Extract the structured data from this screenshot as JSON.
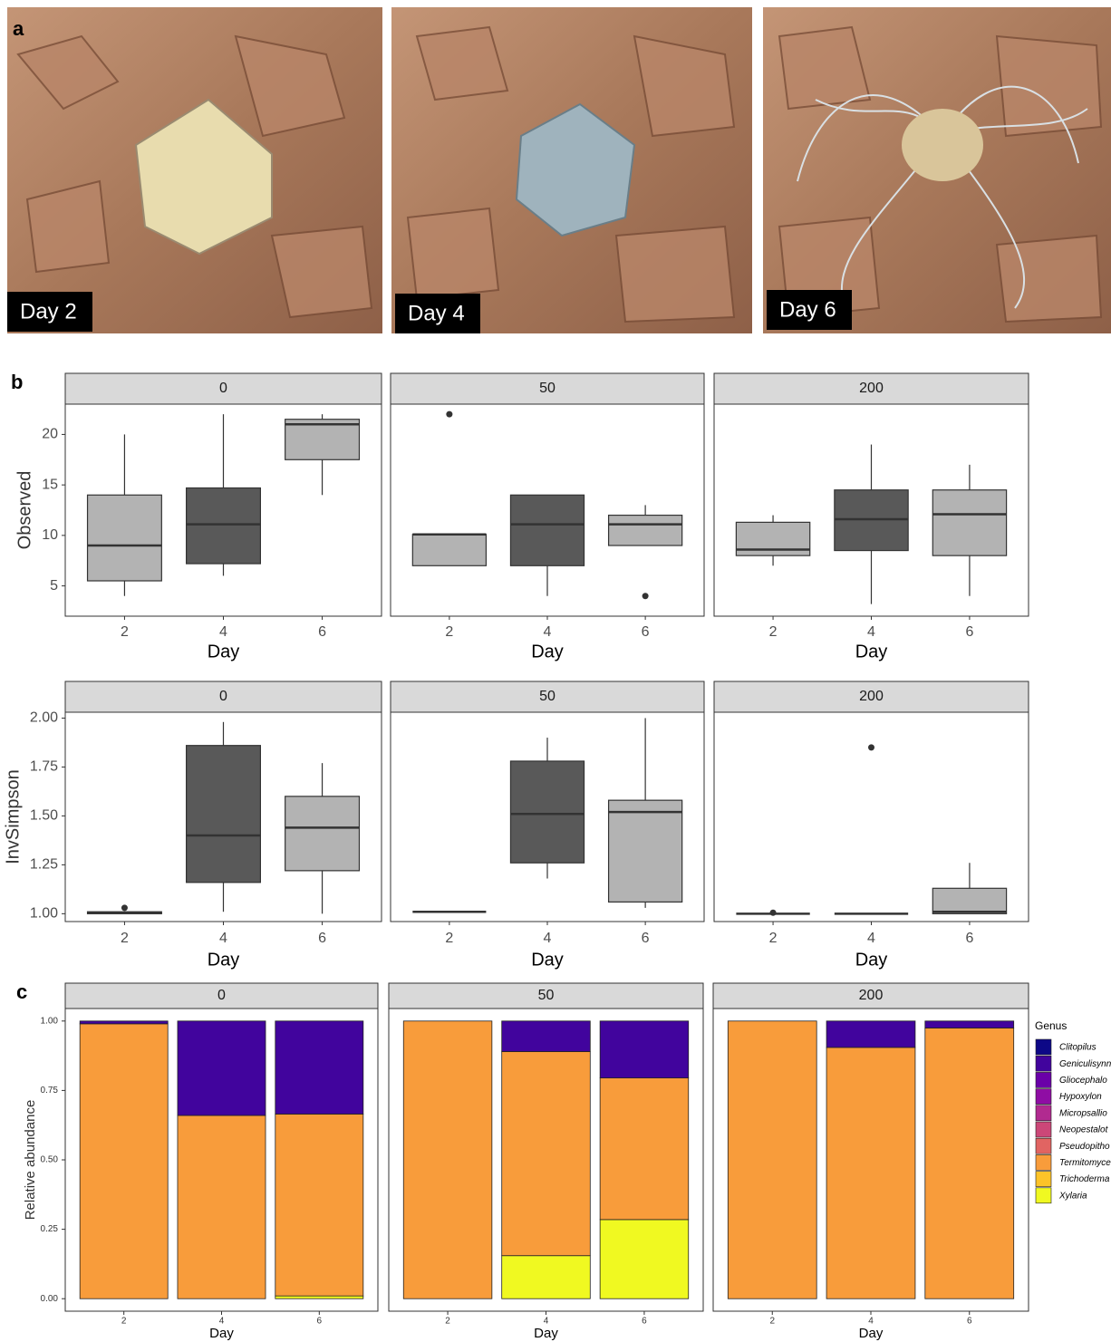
{
  "panel_labels": [
    "a",
    "b",
    "c"
  ],
  "photos": [
    {
      "label": "Day 2"
    },
    {
      "label": "Day 4"
    },
    {
      "label": "Day 6"
    }
  ],
  "chart_data": [
    {
      "type": "box",
      "ylabel": "Observed",
      "xlabel": "Day",
      "categories": [
        "2",
        "4",
        "6"
      ],
      "colors": [
        "#b3b3b3",
        "#595959",
        "#b3b3b3"
      ],
      "ylim": [
        2,
        23
      ],
      "yticks": [
        5,
        10,
        15,
        20
      ],
      "facets": [
        {
          "title": "0",
          "boxes": [
            {
              "min": 4,
              "q1": 5.5,
              "median": 9,
              "q3": 14,
              "max": 20,
              "outliers": []
            },
            {
              "min": 6,
              "q1": 7.2,
              "median": 11.1,
              "q3": 14.7,
              "max": 22,
              "outliers": []
            },
            {
              "min": 14,
              "q1": 17.5,
              "median": 21,
              "q3": 21.5,
              "max": 22,
              "outliers": []
            }
          ]
        },
        {
          "title": "50",
          "boxes": [
            {
              "min": 7,
              "q1": 7,
              "median": 10.1,
              "q3": 10.1,
              "max": 10.1,
              "outliers": [
                22
              ]
            },
            {
              "min": 4,
              "q1": 7,
              "median": 11.1,
              "q3": 14,
              "max": 14,
              "outliers": []
            },
            {
              "min": 9,
              "q1": 9,
              "median": 11.1,
              "q3": 12,
              "max": 13,
              "outliers": [
                4
              ]
            }
          ]
        },
        {
          "title": "200",
          "boxes": [
            {
              "min": 7,
              "q1": 8,
              "median": 8.6,
              "q3": 11.3,
              "max": 12,
              "outliers": []
            },
            {
              "min": 3.2,
              "q1": 8.5,
              "median": 11.6,
              "q3": 14.5,
              "max": 19,
              "outliers": []
            },
            {
              "min": 4,
              "q1": 8,
              "median": 12.1,
              "q3": 14.5,
              "max": 17,
              "outliers": []
            }
          ]
        }
      ]
    },
    {
      "type": "box",
      "ylabel": "InvSimpson",
      "xlabel": "Day",
      "categories": [
        "2",
        "4",
        "6"
      ],
      "colors": [
        "#b3b3b3",
        "#595959",
        "#b3b3b3"
      ],
      "ylim": [
        0.96,
        2.03
      ],
      "yticks": [
        {
          "value": 1,
          "label": "1.00"
        },
        {
          "value": 1.25,
          "label": "1.25"
        },
        {
          "value": 1.5,
          "label": "1.50"
        },
        {
          "value": 1.75,
          "label": "1.75"
        },
        {
          "value": 2,
          "label": "2.00"
        }
      ],
      "facets": [
        {
          "title": "0",
          "boxes": [
            {
              "min": 1,
              "q1": 1,
              "median": 1.005,
              "q3": 1.01,
              "max": 1.01,
              "outliers": [
                1.03
              ]
            },
            {
              "min": 1.01,
              "q1": 1.16,
              "median": 1.4,
              "q3": 1.86,
              "max": 1.98,
              "outliers": []
            },
            {
              "min": 1,
              "q1": 1.22,
              "median": 1.44,
              "q3": 1.6,
              "max": 1.77,
              "outliers": []
            }
          ]
        },
        {
          "title": "50",
          "boxes": [
            {
              "min": 1.01,
              "q1": 1.01,
              "median": 1.01,
              "q3": 1.01,
              "max": 1.01,
              "outliers": []
            },
            {
              "min": 1.18,
              "q1": 1.26,
              "median": 1.51,
              "q3": 1.78,
              "max": 1.9,
              "outliers": []
            },
            {
              "min": 1.03,
              "q1": 1.06,
              "median": 1.52,
              "q3": 1.58,
              "max": 2,
              "outliers": []
            }
          ]
        },
        {
          "title": "200",
          "boxes": [
            {
              "min": 1,
              "q1": 1,
              "median": 1,
              "q3": 1,
              "max": 1,
              "outliers": [
                1.005
              ]
            },
            {
              "min": 1,
              "q1": 1,
              "median": 1,
              "q3": 1,
              "max": 1,
              "outliers": [
                1.85
              ]
            },
            {
              "min": 1,
              "q1": 1,
              "median": 1.01,
              "q3": 1.13,
              "max": 1.26,
              "outliers": []
            }
          ]
        }
      ]
    },
    {
      "type": "stacked_bar",
      "ylabel": "Relative abundance",
      "xlabel": "Day",
      "categories": [
        "2",
        "4",
        "6"
      ],
      "facets": [
        "0",
        "50",
        "200"
      ],
      "legend_title": "Genus",
      "ylim": [
        -0.045,
        1.045
      ],
      "yticks": [
        {
          "value": 0,
          "label": "0.00"
        },
        {
          "value": 0.25,
          "label": "0.25"
        },
        {
          "value": 0.5,
          "label": "0.50"
        },
        {
          "value": 0.75,
          "label": "0.75"
        },
        {
          "value": 1,
          "label": "1.00"
        }
      ],
      "series": [
        {
          "name": "Clitopilus",
          "color": "#0d0887",
          "values": [
            [
              0,
              0,
              0
            ],
            [
              0,
              0,
              0
            ],
            [
              0,
              0,
              0
            ]
          ]
        },
        {
          "name": "Geniculisynn",
          "color": "#41049d",
          "values": [
            [
              0.01,
              0.34,
              0.335
            ],
            [
              0,
              0.11,
              0.205
            ],
            [
              0,
              0.095,
              0.025
            ]
          ]
        },
        {
          "name": "Gliocephalo",
          "color": "#6a00a8",
          "values": [
            [
              0,
              0,
              0
            ],
            [
              0,
              0,
              0
            ],
            [
              0,
              0,
              0
            ]
          ]
        },
        {
          "name": "Hypoxylon",
          "color": "#8f0da4",
          "values": [
            [
              0,
              0,
              0
            ],
            [
              0,
              0,
              0
            ],
            [
              0,
              0,
              0
            ]
          ]
        },
        {
          "name": "Micropsallio",
          "color": "#b12a90",
          "values": [
            [
              0,
              0,
              0
            ],
            [
              0,
              0,
              0
            ],
            [
              0,
              0,
              0
            ]
          ]
        },
        {
          "name": "Neopestalot",
          "color": "#cc4778",
          "values": [
            [
              0,
              0,
              0
            ],
            [
              0,
              0,
              0
            ],
            [
              0,
              0,
              0
            ]
          ]
        },
        {
          "name": "Pseudopitho",
          "color": "#e16462",
          "values": [
            [
              0,
              0,
              0
            ],
            [
              0,
              0,
              0
            ],
            [
              0,
              0,
              0
            ]
          ]
        },
        {
          "name": "Termitomyce",
          "color": "#f89c3b",
          "values": [
            [
              0.99,
              0.66,
              0.655
            ],
            [
              1,
              0.735,
              0.51
            ],
            [
              1,
              0.905,
              0.975
            ]
          ]
        },
        {
          "name": "Trichoderma",
          "color": "#fdc328",
          "values": [
            [
              0,
              0,
              0
            ],
            [
              0,
              0,
              0
            ],
            [
              0,
              0,
              0
            ]
          ]
        },
        {
          "name": "Xylaria",
          "color": "#f0f921",
          "values": [
            [
              0,
              0,
              0.01
            ],
            [
              0,
              0.155,
              0.285
            ],
            [
              0,
              0,
              0
            ]
          ]
        }
      ]
    }
  ]
}
